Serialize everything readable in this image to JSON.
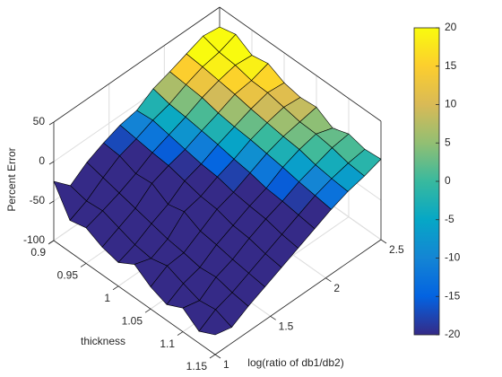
{
  "chart_data": {
    "type": "surface",
    "xlabel": "thickness",
    "ylabel": "log(ratio of db1/db2)",
    "zlabel": "Percent Error",
    "x": [
      0.9,
      0.925,
      0.95,
      0.975,
      1.0,
      1.025,
      1.05,
      1.075,
      1.1,
      1.125,
      1.15
    ],
    "y": [
      1.0,
      1.15,
      1.3,
      1.45,
      1.6,
      1.75,
      1.9,
      2.05,
      2.2,
      2.35,
      2.5
    ],
    "z": [
      [
        -25,
        -45,
        -30,
        -20,
        -12,
        -8,
        5,
        12,
        20,
        28,
        25
      ],
      [
        -60,
        -50,
        -35,
        -22,
        -15,
        -6,
        0,
        10,
        18,
        22,
        30
      ],
      [
        -55,
        -48,
        -40,
        -30,
        -18,
        -10,
        -2,
        8,
        15,
        20,
        18
      ],
      [
        -65,
        -55,
        -45,
        -28,
        -20,
        -14,
        -5,
        3,
        12,
        15,
        22
      ],
      [
        -70,
        -62,
        -50,
        -40,
        -25,
        -18,
        -8,
        0,
        8,
        14,
        12
      ],
      [
        -58,
        -65,
        -55,
        -35,
        -30,
        -20,
        -12,
        -2,
        5,
        10,
        8
      ],
      [
        -72,
        -60,
        -58,
        -45,
        -32,
        -25,
        -15,
        -5,
        2,
        6,
        10
      ],
      [
        -80,
        -68,
        -62,
        -48,
        -38,
        -28,
        -20,
        -8,
        0,
        5,
        -2
      ],
      [
        -70,
        -75,
        -60,
        -52,
        -40,
        -30,
        -22,
        -12,
        -5,
        2,
        5
      ],
      [
        -85,
        -72,
        -65,
        -55,
        -45,
        -35,
        -25,
        -15,
        -8,
        -3,
        0
      ],
      [
        -75,
        -80,
        -68,
        -58,
        -48,
        -38,
        -28,
        -18,
        -10,
        -5,
        2
      ]
    ],
    "xlim": [
      0.9,
      1.15
    ],
    "xticks": [
      0.9,
      0.95,
      1,
      1.05,
      1.1,
      1.15
    ],
    "ylim": [
      1,
      2.5
    ],
    "yticks": [
      1,
      1.5,
      2,
      2.5
    ],
    "zlim": [
      -100,
      50
    ],
    "zticks": [
      -100,
      -50,
      0,
      50
    ],
    "clim": [
      -20,
      20
    ],
    "cticks": [
      -20,
      -15,
      -10,
      -5,
      0,
      5,
      10,
      15,
      20
    ],
    "colormap": [
      "#352a87",
      "#0363e1",
      "#1485d4",
      "#06a7c6",
      "#38b99e",
      "#92bf73",
      "#d9ba56",
      "#fcce2e",
      "#f9fb0e"
    ],
    "grid": true,
    "edge_color": "#000000"
  }
}
